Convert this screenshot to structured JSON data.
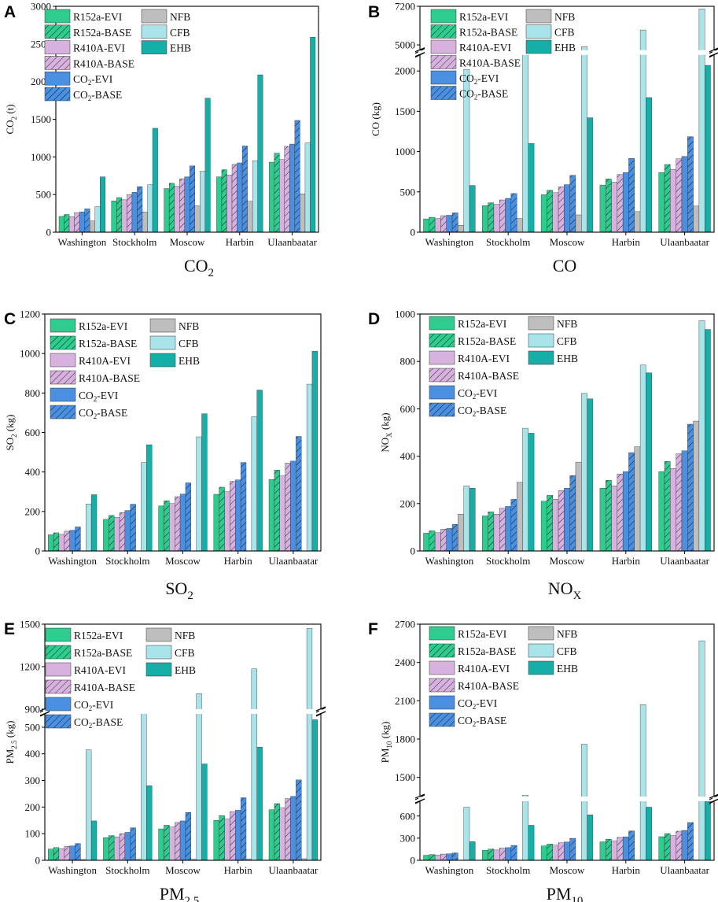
{
  "series": [
    {
      "name": "R152a-EVI",
      "color": "#2ECC8F",
      "hatch": false
    },
    {
      "name": "R152a-BASE",
      "color": "#2ECC8F",
      "hatch": true
    },
    {
      "name": "R410A-EVI",
      "color": "#D7B2DF",
      "hatch": false
    },
    {
      "name": "R410A-BASE",
      "color": "#D7B2DF",
      "hatch": true
    },
    {
      "name": "CO2-EVI",
      "color": "#4A8FE0",
      "hatch": false
    },
    {
      "name": "CO2-BASE",
      "color": "#4A8FE0",
      "hatch": true
    },
    {
      "name": "NFB",
      "color": "#BEBEBE",
      "hatch": false
    },
    {
      "name": "CFB",
      "color": "#A8E4EA",
      "hatch": false
    },
    {
      "name": "EHB",
      "color": "#15AFA7",
      "hatch": false
    }
  ],
  "chart_data": [
    {
      "panel": "A",
      "type": "bar",
      "title": "CO2",
      "ylabel": "CO2 (t)",
      "categories": [
        "Washington",
        "Stockholm",
        "Moscow",
        "Harbin",
        "Ulaanbaatar"
      ],
      "ylim": [
        0,
        3000
      ],
      "yticks": [
        0,
        500,
        1000,
        1500,
        2000,
        2500,
        3000
      ],
      "values": {
        "R152a-EVI": [
          210,
          415,
          580,
          735,
          930
        ],
        "R152a-BASE": [
          235,
          460,
          650,
          830,
          1050
        ],
        "R410A-EVI": [
          205,
          430,
          610,
          760,
          965
        ],
        "R410A-BASE": [
          260,
          500,
          710,
          900,
          1140
        ],
        "CO2-EVI": [
          270,
          530,
          735,
          920,
          1170
        ],
        "CO2-BASE": [
          310,
          605,
          880,
          1145,
          1485
        ],
        "NFB": [
          150,
          270,
          350,
          410,
          510
        ],
        "CFB": [
          340,
          630,
          810,
          950,
          1185
        ],
        "EHB": [
          735,
          1380,
          1780,
          2090,
          2590
        ]
      }
    },
    {
      "panel": "B",
      "type": "bar",
      "title": "CO",
      "ylabel": "CO (kg)",
      "categories": [
        "Washington",
        "Stockholm",
        "Moscow",
        "Harbin",
        "Ulaanbaatar"
      ],
      "breaks": [
        [
          2200,
          4700
        ]
      ],
      "yticks": [
        0,
        500,
        1000,
        1500,
        2000,
        5000,
        7200
      ],
      "values": {
        "R152a-EVI": [
          165,
          330,
          465,
          585,
          740
        ],
        "R152a-BASE": [
          185,
          365,
          520,
          660,
          840
        ],
        "R410A-EVI": [
          170,
          345,
          490,
          620,
          780
        ],
        "R410A-BASE": [
          205,
          400,
          565,
          715,
          910
        ],
        "CO2-EVI": [
          210,
          420,
          590,
          740,
          940
        ],
        "CO2-BASE": [
          240,
          480,
          705,
          915,
          1185
        ],
        "NFB": [
          85,
          170,
          215,
          255,
          325
        ],
        "CFB": [
          2020,
          3600,
          4900,
          5850,
          7050
        ],
        "EHB": [
          580,
          1100,
          1420,
          1670,
          2070
        ]
      }
    },
    {
      "panel": "C",
      "type": "bar",
      "title": "SO2",
      "ylabel": "SO2 (kg)",
      "categories": [
        "Washington",
        "Stockholm",
        "Moscow",
        "Harbin",
        "Ulaanbaatar"
      ],
      "ylim": [
        0,
        1200
      ],
      "yticks": [
        0,
        200,
        400,
        600,
        800,
        1000,
        1200
      ],
      "values": {
        "R152a-EVI": [
          82,
          160,
          228,
          287,
          362
        ],
        "R152a-BASE": [
          92,
          180,
          254,
          323,
          410
        ],
        "R410A-EVI": [
          84,
          170,
          240,
          300,
          380
        ],
        "R410A-BASE": [
          100,
          195,
          275,
          352,
          445
        ],
        "CO2-EVI": [
          105,
          205,
          288,
          360,
          455
        ],
        "CO2-BASE": [
          122,
          237,
          345,
          448,
          580
        ],
        "NFB": [
          0,
          0,
          0,
          0,
          0
        ],
        "CFB": [
          238,
          448,
          578,
          680,
          845
        ],
        "EHB": [
          285,
          538,
          695,
          815,
          1012
        ]
      }
    },
    {
      "panel": "D",
      "type": "bar",
      "title": "NOX",
      "ylabel": "NOX (kg)",
      "categories": [
        "Washington",
        "Stockholm",
        "Moscow",
        "Harbin",
        "Ulaanbaatar"
      ],
      "ylim": [
        0,
        1000
      ],
      "yticks": [
        0,
        200,
        400,
        600,
        800,
        1000
      ],
      "values": {
        "R152a-EVI": [
          75,
          148,
          210,
          265,
          335
        ],
        "R152a-BASE": [
          85,
          165,
          235,
          298,
          378
        ],
        "R410A-EVI": [
          77,
          155,
          218,
          275,
          348
        ],
        "R410A-BASE": [
          92,
          180,
          255,
          325,
          410
        ],
        "CO2-EVI": [
          95,
          188,
          265,
          335,
          423
        ],
        "CO2-BASE": [
          112,
          218,
          318,
          415,
          535
        ],
        "NFB": [
          155,
          290,
          375,
          440,
          548
        ],
        "CFB": [
          275,
          518,
          665,
          785,
          972
        ],
        "EHB": [
          265,
          497,
          642,
          752,
          935
        ]
      }
    },
    {
      "panel": "E",
      "type": "bar",
      "title": "PM2.5",
      "ylabel": "PM2.5 (kg)",
      "categories": [
        "Washington",
        "Stockholm",
        "Moscow",
        "Harbin",
        "Ulaanbaatar"
      ],
      "breaks": [
        [
          550,
          900
        ]
      ],
      "yticks": [
        0,
        100,
        200,
        300,
        400,
        500,
        900,
        1200,
        1500
      ],
      "values": {
        "R152a-EVI": [
          42,
          85,
          118,
          150,
          190
        ],
        "R152a-BASE": [
          48,
          93,
          132,
          168,
          213
        ],
        "R410A-EVI": [
          44,
          88,
          125,
          155,
          198
        ],
        "R410A-BASE": [
          52,
          100,
          142,
          183,
          232
        ],
        "CO2-EVI": [
          54,
          105,
          148,
          188,
          240
        ],
        "CO2-BASE": [
          63,
          122,
          180,
          235,
          302
        ],
        "NFB": [
          3,
          4,
          4,
          5,
          6
        ],
        "CFB": [
          415,
          880,
          1010,
          1185,
          1470
        ],
        "EHB": [
          148,
          280,
          362,
          425,
          528
        ]
      }
    },
    {
      "panel": "F",
      "type": "bar",
      "title": "PM10",
      "ylabel": "PM10 (kg)",
      "categories": [
        "Washington",
        "Stockholm",
        "Moscow",
        "Harbin",
        "Ulaanbaatar"
      ],
      "breaks": [
        [
          800,
          1350
        ]
      ],
      "yticks": [
        0,
        300,
        600,
        1500,
        1800,
        2100,
        2400,
        2700
      ],
      "values": {
        "R152a-EVI": [
          68,
          135,
          195,
          250,
          320
        ],
        "R152a-BASE": [
          78,
          152,
          220,
          285,
          362
        ],
        "R410A-EVI": [
          70,
          140,
          205,
          262,
          335
        ],
        "R410A-BASE": [
          85,
          165,
          238,
          310,
          395
        ],
        "CO2-EVI": [
          88,
          172,
          248,
          318,
          405
        ],
        "CO2-BASE": [
          100,
          202,
          298,
          398,
          512
        ],
        "NFB": [
          2,
          3,
          4,
          4,
          5
        ],
        "CFB": [
          720,
          1360,
          1760,
          2070,
          2570
        ],
        "EHB": [
          252,
          475,
          615,
          720,
          880
        ]
      }
    }
  ]
}
